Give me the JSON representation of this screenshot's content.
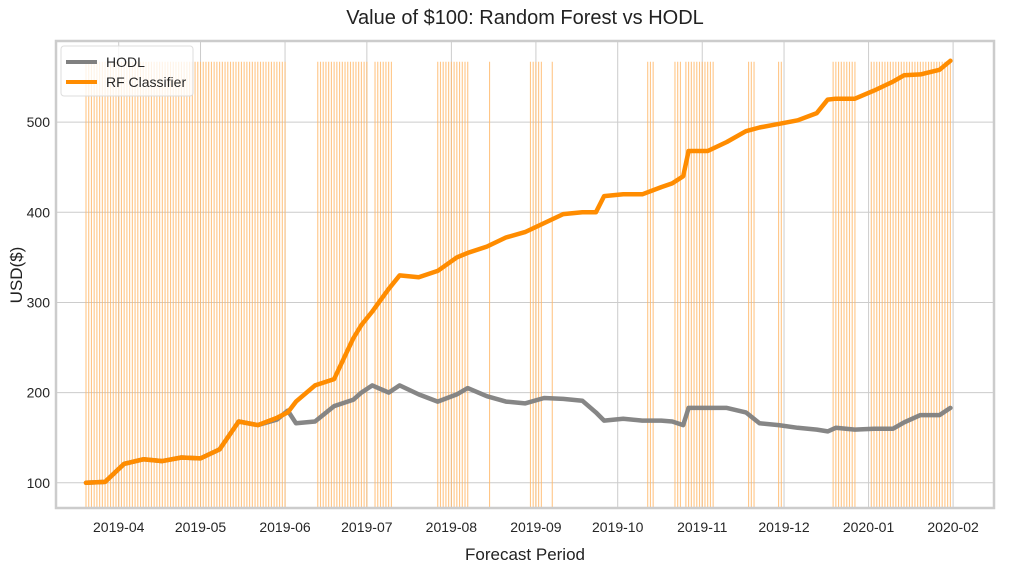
{
  "chart_data": {
    "type": "line",
    "title": "Value of $100: Random Forest vs HODL",
    "xlabel": "Forecast Period",
    "ylabel": "USD($)",
    "x_tick_labels": [
      "2019-04",
      "2019-05",
      "2019-06",
      "2019-07",
      "2019-08",
      "2019-09",
      "2019-10",
      "2019-11",
      "2019-12",
      "2020-01",
      "2020-02"
    ],
    "x_ticks": [
      "2019-04-01",
      "2019-05-01",
      "2019-06-01",
      "2019-07-01",
      "2019-08-01",
      "2019-09-01",
      "2019-10-01",
      "2019-11-01",
      "2019-12-01",
      "2020-01-01",
      "2020-02-01"
    ],
    "xlim": [
      "2019-03-09",
      "2020-02-16"
    ],
    "y_ticks": [
      100,
      200,
      300,
      400,
      500
    ],
    "ylim": [
      72,
      590
    ],
    "grid": true,
    "legend_position": "top-left",
    "series": [
      {
        "name": "HODL",
        "color": "#808080",
        "x": [
          "2019-03-20",
          "2019-03-27",
          "2019-04-03",
          "2019-04-10",
          "2019-04-17",
          "2019-04-24",
          "2019-05-01",
          "2019-05-08",
          "2019-05-15",
          "2019-05-22",
          "2019-05-29",
          "2019-06-02",
          "2019-06-05",
          "2019-06-12",
          "2019-06-19",
          "2019-06-26",
          "2019-06-29",
          "2019-07-03",
          "2019-07-09",
          "2019-07-13",
          "2019-07-20",
          "2019-07-27",
          "2019-08-03",
          "2019-08-07",
          "2019-08-14",
          "2019-08-21",
          "2019-08-28",
          "2019-09-04",
          "2019-09-11",
          "2019-09-18",
          "2019-09-23",
          "2019-09-26",
          "2019-10-03",
          "2019-10-10",
          "2019-10-17",
          "2019-10-21",
          "2019-10-25",
          "2019-10-27",
          "2019-11-03",
          "2019-11-10",
          "2019-11-17",
          "2019-11-22",
          "2019-11-29",
          "2019-12-06",
          "2019-12-13",
          "2019-12-17",
          "2019-12-20",
          "2019-12-27",
          "2020-01-03",
          "2020-01-10",
          "2020-01-14",
          "2020-01-20",
          "2020-01-27",
          "2020-01-31"
        ],
        "values": [
          100,
          101,
          121,
          126,
          124,
          128,
          127,
          137,
          168,
          164,
          170,
          180,
          166,
          168,
          185,
          192,
          200,
          208,
          200,
          208,
          198,
          190,
          198,
          205,
          196,
          190,
          188,
          194,
          193,
          191,
          178,
          169,
          171,
          169,
          169,
          168,
          164,
          183,
          183,
          183,
          178,
          166,
          164,
          161,
          159,
          157,
          161,
          159,
          160,
          160,
          167,
          175,
          175,
          183
        ]
      },
      {
        "name": "RF Classifier",
        "color": "#ff8c00",
        "x": [
          "2019-03-20",
          "2019-03-27",
          "2019-04-03",
          "2019-04-10",
          "2019-04-17",
          "2019-04-24",
          "2019-05-01",
          "2019-05-08",
          "2019-05-15",
          "2019-05-22",
          "2019-05-29",
          "2019-06-02",
          "2019-06-05",
          "2019-06-12",
          "2019-06-19",
          "2019-06-26",
          "2019-06-29",
          "2019-07-03",
          "2019-07-09",
          "2019-07-13",
          "2019-07-20",
          "2019-07-27",
          "2019-08-03",
          "2019-08-07",
          "2019-08-14",
          "2019-08-21",
          "2019-08-28",
          "2019-09-04",
          "2019-09-11",
          "2019-09-18",
          "2019-09-23",
          "2019-09-26",
          "2019-10-03",
          "2019-10-10",
          "2019-10-17",
          "2019-10-21",
          "2019-10-25",
          "2019-10-27",
          "2019-11-03",
          "2019-11-10",
          "2019-11-17",
          "2019-11-22",
          "2019-11-29",
          "2019-12-06",
          "2019-12-13",
          "2019-12-17",
          "2019-12-20",
          "2019-12-27",
          "2020-01-03",
          "2020-01-10",
          "2020-01-14",
          "2020-01-20",
          "2020-01-27",
          "2020-01-31"
        ],
        "values": [
          100,
          101,
          121,
          126,
          124,
          128,
          127,
          137,
          168,
          164,
          172,
          178,
          190,
          208,
          215,
          260,
          275,
          290,
          315,
          330,
          328,
          335,
          350,
          355,
          362,
          372,
          378,
          388,
          398,
          400,
          400,
          418,
          420,
          420,
          428,
          432,
          440,
          468,
          468,
          478,
          490,
          494,
          498,
          502,
          510,
          525,
          526,
          526,
          535,
          545,
          552,
          553,
          558,
          568
        ]
      }
    ],
    "signal_band_color": "#ffb869",
    "signal_bands": [
      [
        "2019-03-20",
        "2019-06-01"
      ],
      [
        "2019-06-13",
        "2019-07-01"
      ],
      [
        "2019-07-04",
        "2019-07-10"
      ],
      [
        "2019-07-27",
        "2019-08-07"
      ],
      [
        "2019-08-15",
        "2019-08-15"
      ],
      [
        "2019-08-30",
        "2019-09-03"
      ],
      [
        "2019-09-07",
        "2019-09-07"
      ],
      [
        "2019-10-12",
        "2019-10-14"
      ],
      [
        "2019-10-22",
        "2019-10-24"
      ],
      [
        "2019-10-26",
        "2019-11-05"
      ],
      [
        "2019-11-18",
        "2019-11-20"
      ],
      [
        "2019-11-29",
        "2019-11-30"
      ],
      [
        "2019-12-19",
        "2019-12-27"
      ],
      [
        "2020-01-02",
        "2020-01-31"
      ]
    ]
  }
}
